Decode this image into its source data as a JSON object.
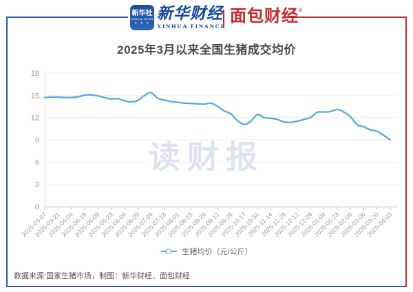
{
  "header": {
    "xinhua_icon": {
      "line1": "新华社",
      "line2": "XINHUA NEWS",
      "stars": "✦ ✦ ✦"
    },
    "xinhua_finance": {
      "name": "新华财经",
      "sub": "XINHUA FINANCE"
    },
    "mianbao": {
      "name": "面包财经",
      "reg": "®"
    }
  },
  "title": "2025年3月以来全国生猪成交均价",
  "watermark": "读财报",
  "footer": {
    "source": "数据来源:国家生猪市场，制图：新华财经、面包财经"
  },
  "colors": {
    "line": "#56a9de",
    "frame_blue": "#2a5ba6",
    "frame_red": "#c02a30",
    "logo_blue": "#16499e",
    "logo_red": "#c3292e",
    "grid": "#e9edf6",
    "axis": "#b9bcc4",
    "tick_text": "#999999",
    "title_text": "#4a4a4a",
    "watermark": "#dde4f1",
    "legend_text": "#666666",
    "footer_text": "#555555"
  },
  "chart_data": {
    "type": "line",
    "title": "2025年3月以来全国生猪成交均价",
    "xlabel": "",
    "ylabel": "元/公斤",
    "smooth": true,
    "grid": true,
    "legend_position": "bottom",
    "yaxis": {
      "min": 0,
      "max": 18,
      "ticks": [
        0,
        3,
        6,
        9,
        12,
        15,
        18
      ]
    },
    "x": [
      "2025-03-07",
      "2025-03-14",
      "2025-03-21",
      "2025-03-28",
      "2025-04-04",
      "2025-04-11",
      "2025-04-18",
      "2025-04-25",
      "2025-05-09",
      "2025-05-16",
      "2025-05-23",
      "2025-05-30",
      "2025-06-06",
      "2025-06-13",
      "2025-06-20",
      "2025-06-27",
      "2025-07-04",
      "2025-07-11",
      "2025-07-18",
      "2025-07-25",
      "2025-08-01",
      "2025-08-08",
      "2025-08-15",
      "2025-08-22",
      "2025-08-29",
      "2025-09-05",
      "2025-09-12",
      "2025-09-19",
      "2025-09-26",
      "2025-10-10",
      "2025-10-17",
      "2025-10-24",
      "2025-10-31",
      "2025-11-07",
      "2025-11-14",
      "2025-11-21",
      "2025-11-28",
      "2025-12-05",
      "2025-12-12",
      "2025-12-19",
      "2025-12-26",
      "2026-01-02",
      "2026-01-09",
      "2026-01-16",
      "2026-01-23",
      "2026-01-30",
      "2026-02-06",
      "2026-02-13",
      "2026-03-06",
      "2026-03-13",
      "2026-03-20",
      "2026-03-27",
      "2026-04-03"
    ],
    "xaxis_tick_labels": [
      "2025-03-07",
      "2025-03-21",
      "2025-04-04",
      "2025-04-18",
      "2025-05-09",
      "2025-05-23",
      "2025-06-06",
      "2025-06-20",
      "2025-07-04",
      "2025-07-18",
      "2025-08-01",
      "2025-08-15",
      "2025-08-29",
      "2025-09-12",
      "2025-09-26",
      "2025-10-17",
      "2025-10-31",
      "2025-11-14",
      "2025-11-28",
      "2025-12-12",
      "2025-12-26",
      "2026-01-09",
      "2026-01-23",
      "2026-02-06",
      "2026-03-06",
      "2026-03-20",
      "2026-04-03"
    ],
    "label_every": 2,
    "series": [
      {
        "name": "生猪均价（元/公斤）",
        "values": [
          14.7,
          14.75,
          14.75,
          14.7,
          14.7,
          14.8,
          15.0,
          15.05,
          14.9,
          14.7,
          14.5,
          14.55,
          14.25,
          14.1,
          14.3,
          14.95,
          15.35,
          14.6,
          14.35,
          14.15,
          14.05,
          13.95,
          13.9,
          13.85,
          13.8,
          13.95,
          13.5,
          12.9,
          12.5,
          11.6,
          11.05,
          11.5,
          12.4,
          12.0,
          11.9,
          11.75,
          11.4,
          11.35,
          11.5,
          11.75,
          12.0,
          12.7,
          12.75,
          12.8,
          13.1,
          12.75,
          12.1,
          11.05,
          10.75,
          10.35,
          10.15,
          9.6,
          9.0
        ]
      }
    ]
  }
}
